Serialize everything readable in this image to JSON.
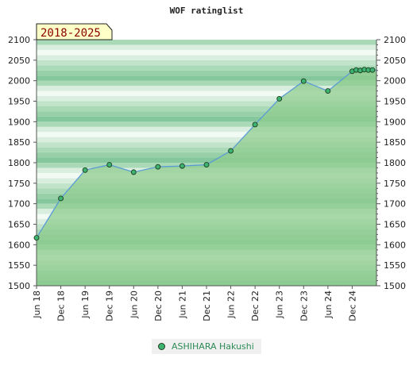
{
  "chart_data": {
    "type": "area",
    "title": "WOF ratinglist",
    "period_label": "2018-2025",
    "ylim": [
      1500,
      2100
    ],
    "y_ticks": [
      1500,
      1550,
      1600,
      1650,
      1700,
      1750,
      1800,
      1850,
      1900,
      1950,
      2000,
      2050,
      2100
    ],
    "x_ticks": [
      "Jun 18",
      "Dec 18",
      "Jun 19",
      "Dec 19",
      "Jun 20",
      "Dec 20",
      "Jun 21",
      "Dec 21",
      "Jun 22",
      "Dec 22",
      "Jun 23",
      "Dec 23",
      "Jun 24",
      "Dec 24"
    ],
    "series": [
      {
        "name": "ASHIHARA Hakushi",
        "points": [
          {
            "x": 0,
            "y": 1617
          },
          {
            "x": 6,
            "y": 1713
          },
          {
            "x": 12,
            "y": 1782
          },
          {
            "x": 18,
            "y": 1795
          },
          {
            "x": 24,
            "y": 1777
          },
          {
            "x": 30,
            "y": 1790
          },
          {
            "x": 36,
            "y": 1792
          },
          {
            "x": 42,
            "y": 1795
          },
          {
            "x": 48,
            "y": 1829
          },
          {
            "x": 54,
            "y": 1893
          },
          {
            "x": 60,
            "y": 1956
          },
          {
            "x": 66,
            "y": 1999
          },
          {
            "x": 72,
            "y": 1975
          },
          {
            "x": 78,
            "y": 2023
          },
          {
            "x": 79,
            "y": 2026
          },
          {
            "x": 80,
            "y": 2025
          },
          {
            "x": 81,
            "y": 2027
          },
          {
            "x": 82,
            "y": 2026
          },
          {
            "x": 83,
            "y": 2026
          }
        ]
      }
    ],
    "colors": {
      "fill": "#8fcc8f",
      "line": "#5b9bd5",
      "marker": "#3cb371",
      "marker_stroke": "#1f3d1f",
      "band_dark": "#7dc393",
      "band_light": "#f2faf4",
      "legend_text": "#2e8b57",
      "badge_bg": "#ffffc8",
      "badge_text": "#8b0000"
    }
  }
}
